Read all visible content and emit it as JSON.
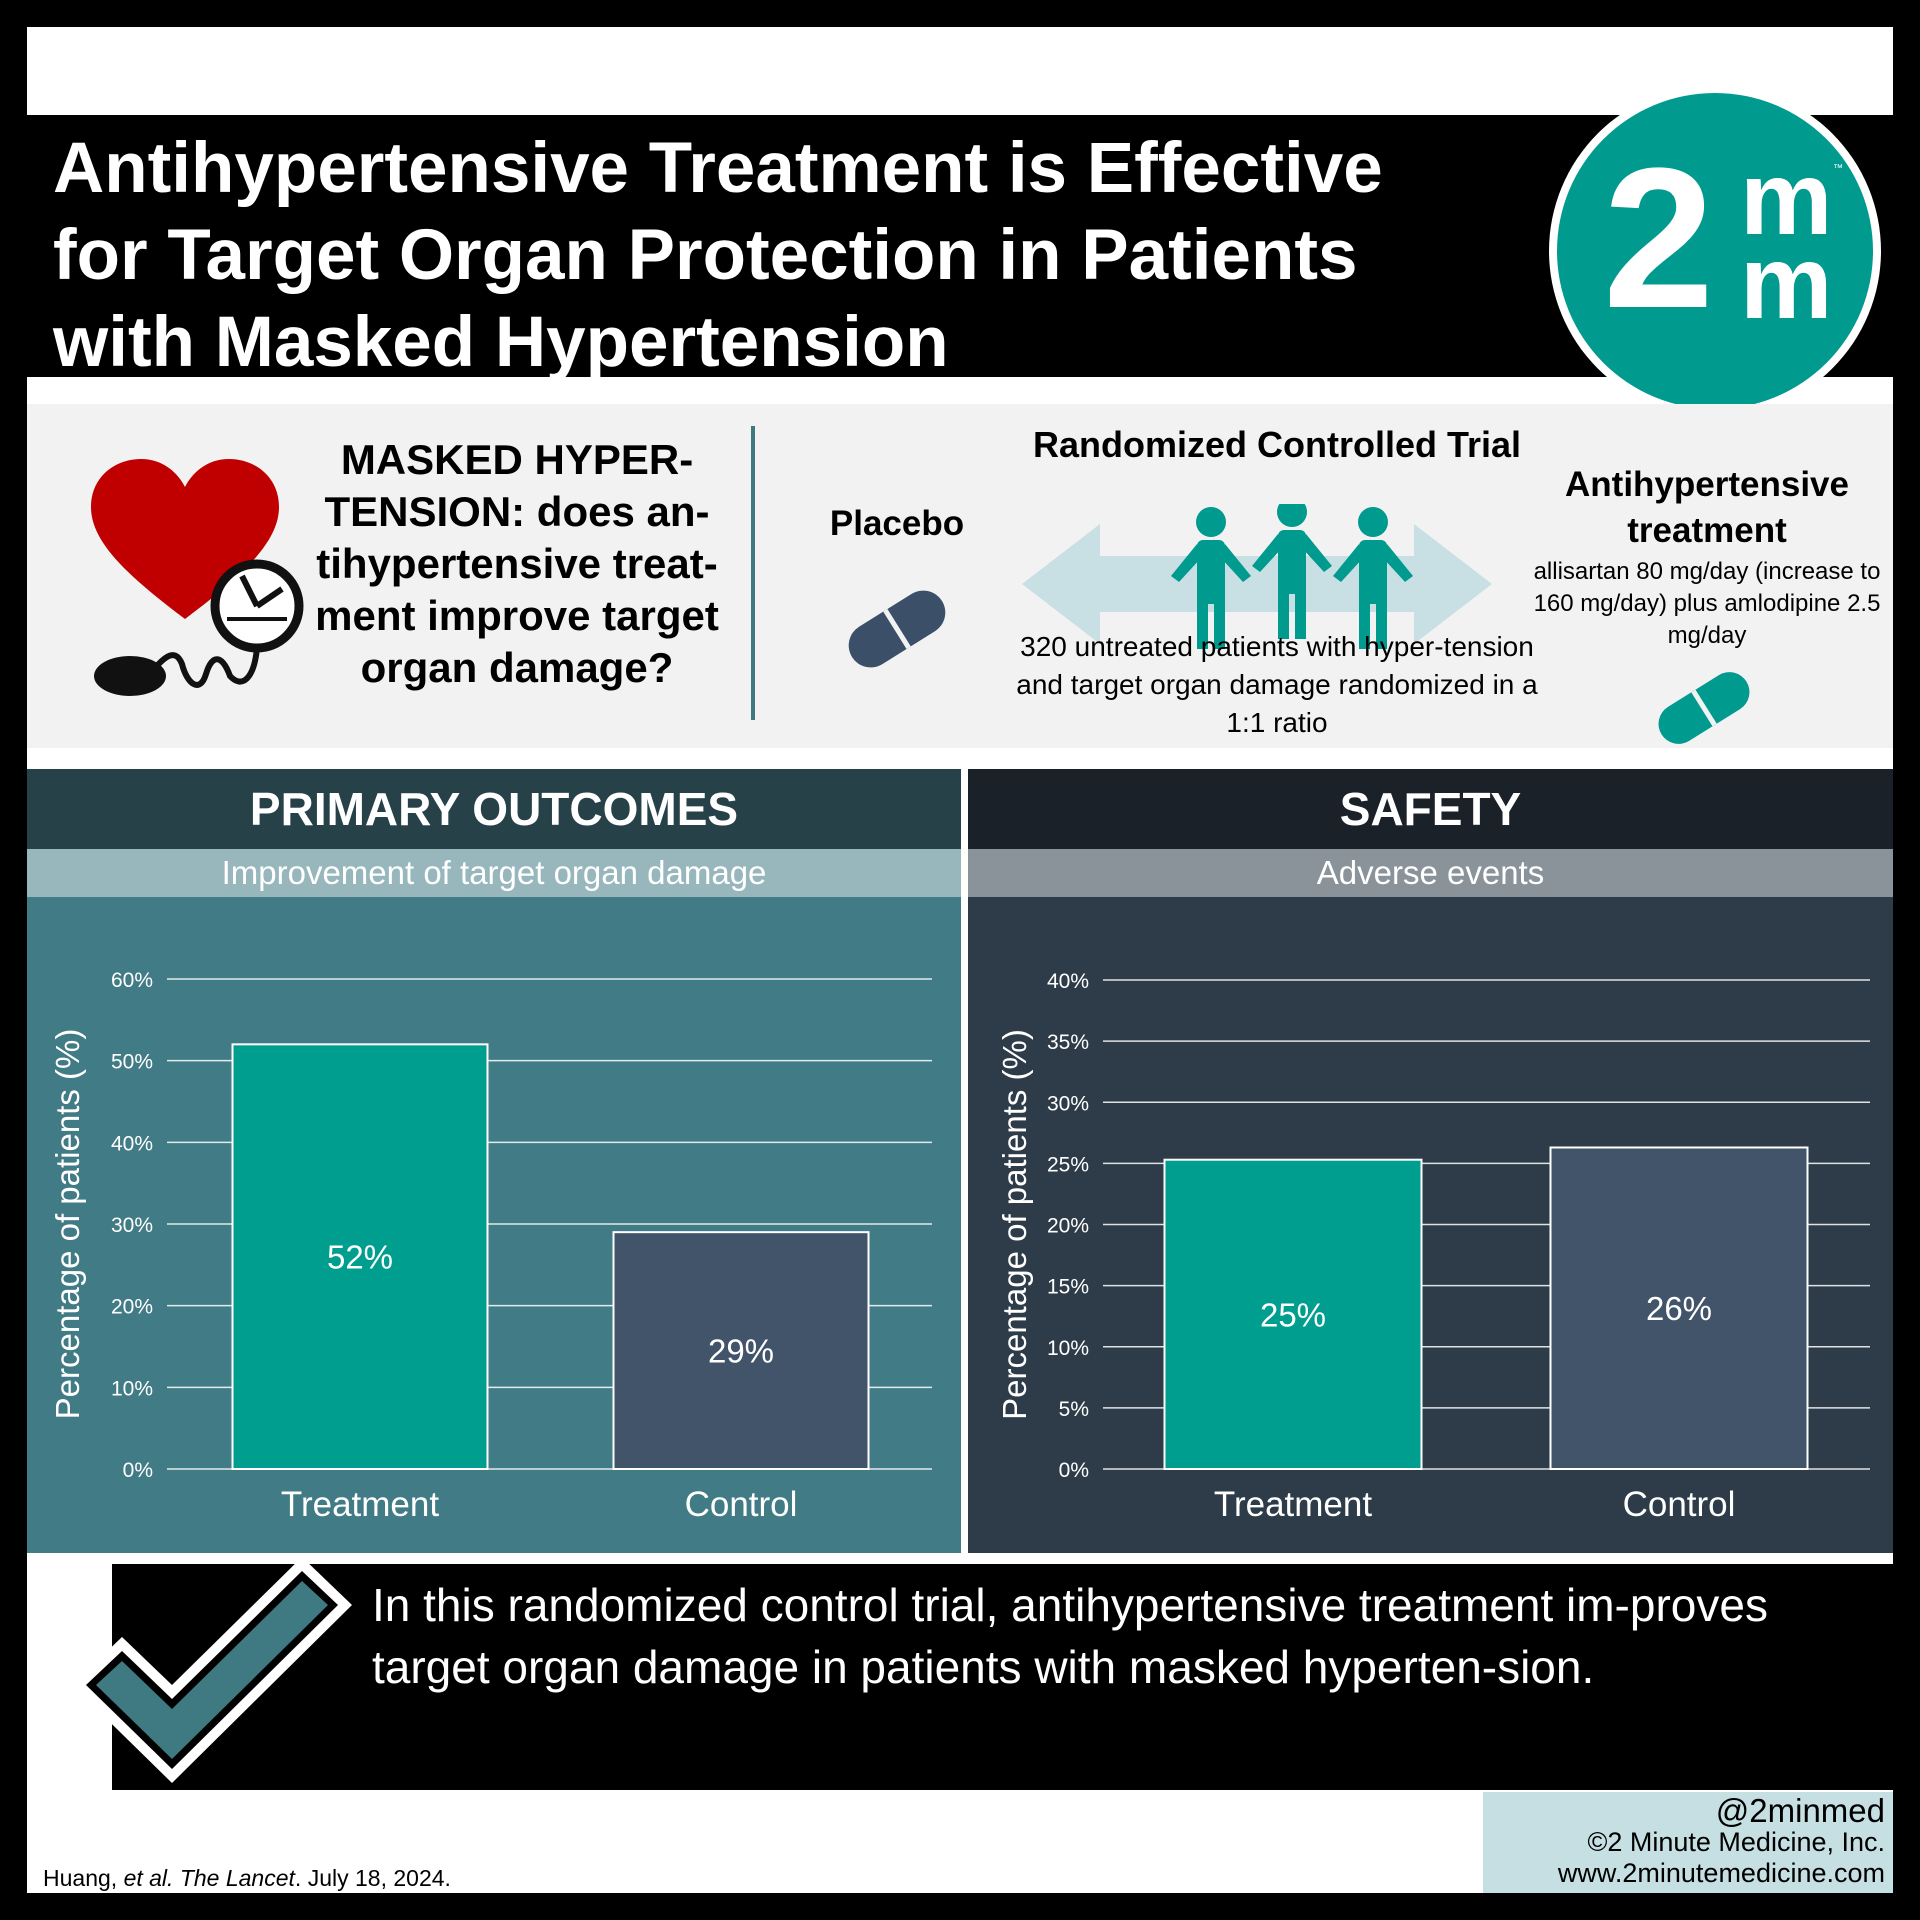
{
  "header": {
    "title": "Antihypertensive Treatment is Effective for Target Organ Protection in Patients with Masked Hypertension",
    "logo": {
      "main": "2",
      "top": "m",
      "bottom": "m",
      "tm": "™"
    }
  },
  "study": {
    "question": "MASKED HYPER-TENSION: does an-tihypertensive treat-ment improve target organ damage?",
    "placebo_label": "Placebo",
    "design_title": "Randomized Controlled Trial",
    "design_desc": "320 untreated patients with hyper-tension and target organ damage randomized in a 1:1 ratio",
    "treatment_title": "Antihypertensive treatment",
    "treatment_dose": "allisartan 80 mg/day (increase to 160 mg/day) plus amlodipine 2.5 mg/day"
  },
  "icons": [
    "heart-icon",
    "blood-pressure-gauge-icon",
    "placebo-pill-icon",
    "people-icon",
    "double-arrow-icon",
    "treatment-pill-icon",
    "checkmark-icon"
  ],
  "colors": {
    "treatment": "#009e8f",
    "control": "#42546a",
    "accent": "#3f7a82"
  },
  "primary": {
    "heading": "PRIMARY OUTCOMES",
    "subheading": "Improvement of target organ damage"
  },
  "safety": {
    "heading": "SAFETY",
    "subheading": "Adverse events"
  },
  "chart_data": [
    {
      "type": "bar",
      "title": "Improvement of target organ damage",
      "ylabel": "Percentage of patients (%)",
      "xlabel": "",
      "categories": [
        "Treatment",
        "Control"
      ],
      "values": [
        52,
        29
      ],
      "value_labels": [
        "52%",
        "29%"
      ],
      "ylim": [
        0,
        60
      ],
      "yticks": [
        0,
        10,
        20,
        30,
        40,
        50,
        60
      ],
      "ytick_labels": [
        "0%",
        "10%",
        "20%",
        "30%",
        "40%",
        "50%",
        "60%"
      ],
      "grid": true
    },
    {
      "type": "bar",
      "title": "Adverse events",
      "ylabel": "Percentage of patients (%)",
      "xlabel": "",
      "categories": [
        "Treatment",
        "Control"
      ],
      "values": [
        25.3,
        26.3
      ],
      "value_labels": [
        "25%",
        "26%"
      ],
      "ylim": [
        0,
        40
      ],
      "yticks": [
        0,
        5,
        10,
        15,
        20,
        25,
        30,
        35,
        40
      ],
      "ytick_labels": [
        "0%",
        "5%",
        "10%",
        "15%",
        "20%",
        "25%",
        "30%",
        "35%",
        "40%"
      ],
      "grid": true
    }
  ],
  "conclusion": "In this randomized control trial, antihypertensive treatment im-proves target organ damage in patients with masked hyperten-sion.",
  "footer": {
    "citation_authors": "Huang, ",
    "citation_etal": "et al. ",
    "citation_journal": "The Lancet",
    "citation_date": ". July 18, 2024.",
    "handle": "@2minmed",
    "copyright": "©2 Minute Medicine, Inc.",
    "website": "www.2minutemedicine.com"
  }
}
